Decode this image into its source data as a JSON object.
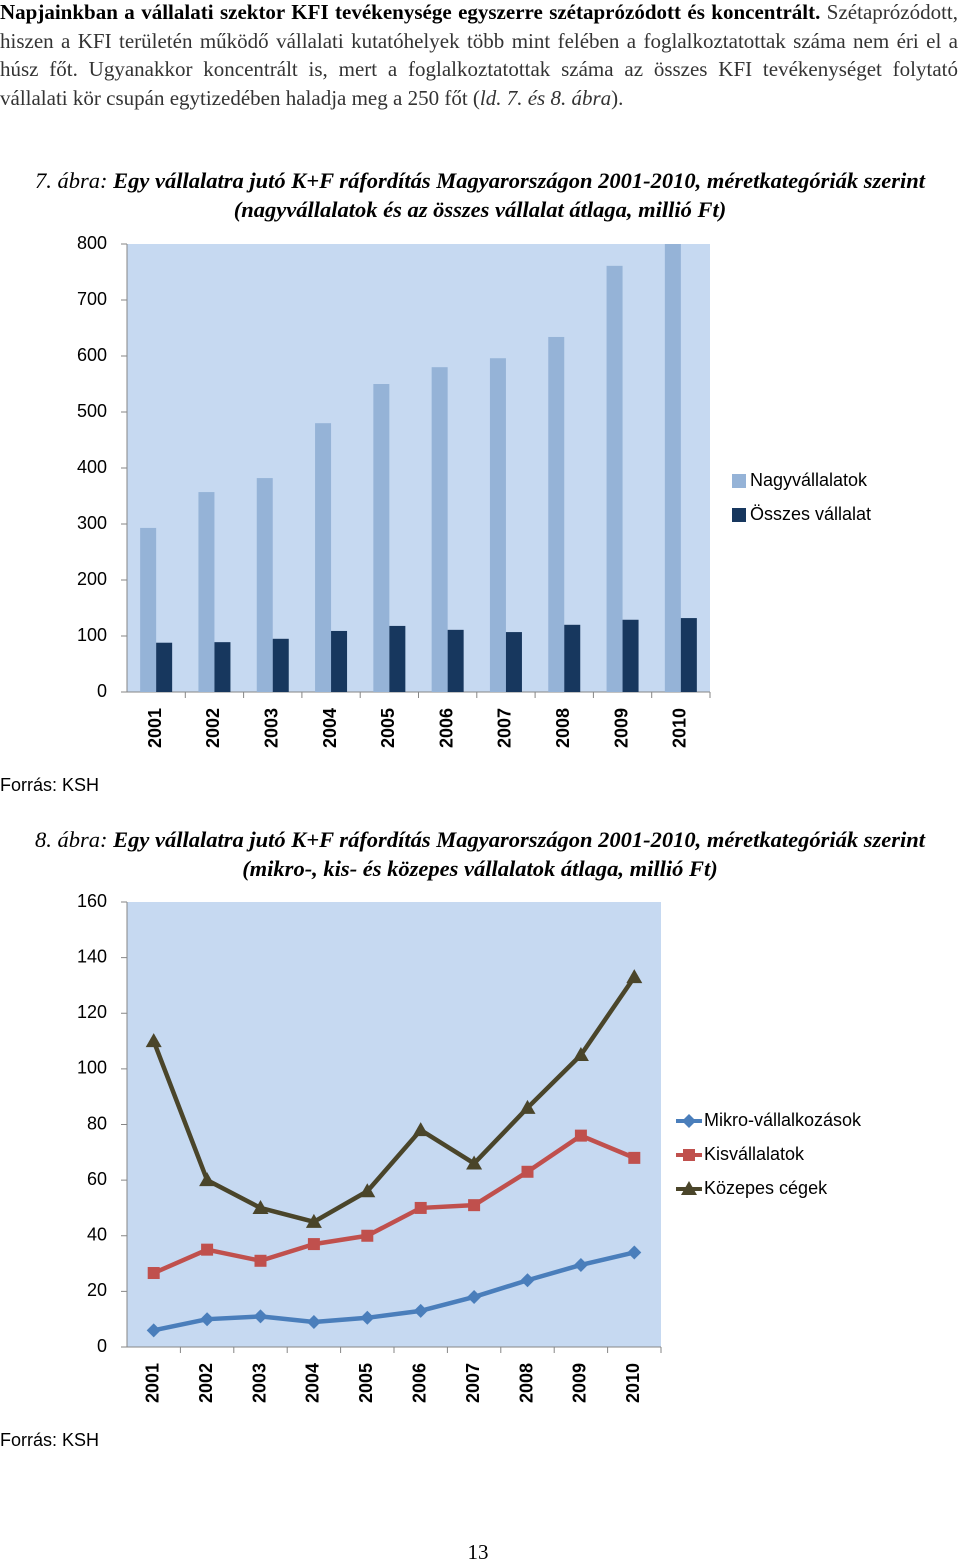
{
  "paragraph": [
    "Napjainkban a vállalati szektor KFI tevékenysége egyszerre szétaprózódott és koncentrált.",
    "Szétaprózódott, hiszen a KFI területén működő vállalati kutatóhelyek több mint felében a foglalkoztatottak száma nem éri el a húsz főt. Ugyanakkor koncentrált is, mert a foglalkoztatottak száma az összes KFI tevékenységet folytató vállalati kör csupán egytizedében haladja meg a 250 főt (",
    "ld. 7. és 8. ábra",
    ")."
  ],
  "chart_data": [
    {
      "type": "bar",
      "figure_label": "7. ábra:",
      "title": "Egy vállalatra jutó K+F ráfordítás Magyarországon 2001-2010, méretkategóriák szerint (nagyvállalatok és az összes vállalat átlaga, millió Ft)",
      "categories": [
        "2001",
        "2002",
        "2003",
        "2004",
        "2005",
        "2006",
        "2007",
        "2008",
        "2009",
        "2010"
      ],
      "series": [
        {
          "name": "Nagyvállalatok",
          "color": "#95b3d7",
          "values": [
            293,
            357,
            382,
            480,
            550,
            580,
            596,
            634,
            761,
            800
          ]
        },
        {
          "name": "Összes vállalat",
          "color": "#17375e",
          "values": [
            88,
            89,
            95,
            109,
            118,
            111,
            107,
            120,
            129,
            132
          ]
        }
      ],
      "ylim": [
        0,
        800
      ],
      "yticks": [
        0,
        100,
        200,
        300,
        400,
        500,
        600,
        700,
        800
      ],
      "legend": "right",
      "source": "Forrás: KSH"
    },
    {
      "type": "line",
      "figure_label": "8. ábra:",
      "title": "Egy vállalatra jutó K+F ráfordítás Magyarországon 2001-2010, méretkategóriák szerint (mikro-, kis- és közepes vállalatok átlaga, millió Ft)",
      "categories": [
        "2001",
        "2002",
        "2003",
        "2004",
        "2005",
        "2006",
        "2007",
        "2008",
        "2009",
        "2010"
      ],
      "series": [
        {
          "name": "Mikro-vállalkozások",
          "color": "#4a7ebb",
          "marker": "diamond",
          "values": [
            6,
            10,
            11,
            9,
            10.5,
            13,
            18,
            24,
            29.5,
            34
          ]
        },
        {
          "name": "Kisvállalatok",
          "color": "#c0504d",
          "marker": "square",
          "values": [
            26.6,
            35,
            31,
            37,
            40,
            50,
            51,
            63,
            76,
            68
          ]
        },
        {
          "name": "Közepes cégek",
          "color": "#4a452a",
          "marker": "triangle",
          "values": [
            110,
            60,
            50,
            45,
            56,
            78,
            66,
            86,
            105,
            133
          ]
        }
      ],
      "ylim": [
        0,
        160
      ],
      "yticks": [
        0,
        20,
        40,
        60,
        80,
        100,
        120,
        140,
        160
      ],
      "legend": "right",
      "source": "Forrás: KSH"
    }
  ],
  "page_number": "13"
}
